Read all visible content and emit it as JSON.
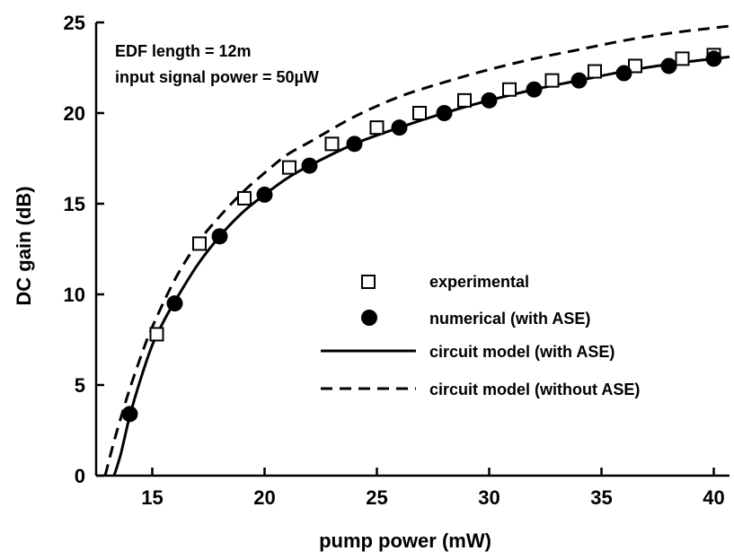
{
  "chart_data": {
    "type": "line",
    "title": "",
    "xlabel": "pump power (mW)",
    "ylabel": "DC gain (dB)",
    "xlim": [
      12.5,
      40.7
    ],
    "ylim": [
      0,
      25
    ],
    "xticks": [
      15,
      20,
      25,
      30,
      35,
      40
    ],
    "yticks": [
      0,
      5,
      10,
      15,
      20,
      25
    ],
    "grid": false,
    "legend_position": "center-right",
    "annotations": [
      "EDF length = 12m",
      "input signal power = 50µW"
    ],
    "series": [
      {
        "name": "experimental",
        "style": "open-square-markers",
        "color": "#000000",
        "x": [
          15.2,
          17.1,
          19.1,
          21.1,
          23.0,
          25.0,
          26.9,
          28.9,
          30.9,
          32.8,
          34.7,
          36.5,
          38.6,
          40.0
        ],
        "y": [
          7.8,
          12.8,
          15.3,
          17.0,
          18.3,
          19.2,
          20.0,
          20.7,
          21.3,
          21.8,
          22.3,
          22.6,
          23.0,
          23.2
        ]
      },
      {
        "name": "numerical (with ASE)",
        "style": "filled-circle-markers",
        "color": "#000000",
        "x": [
          14,
          16,
          18,
          20,
          22,
          24,
          26,
          28,
          30,
          32,
          34,
          36,
          38,
          40
        ],
        "y": [
          3.4,
          9.5,
          13.2,
          15.5,
          17.1,
          18.3,
          19.2,
          20.0,
          20.7,
          21.3,
          21.8,
          22.2,
          22.6,
          23.0
        ]
      },
      {
        "name": "circuit model (with ASE)",
        "style": "solid-line",
        "color": "#000000",
        "x": [
          13.3,
          13.6,
          14,
          14.5,
          15,
          15.5,
          16,
          17,
          18,
          19,
          20,
          21,
          22,
          24,
          26,
          28,
          30,
          32,
          34,
          36,
          38,
          40,
          40.7
        ],
        "y": [
          0.0,
          1.2,
          3.3,
          5.4,
          7.2,
          8.5,
          9.6,
          11.6,
          13.2,
          14.5,
          15.5,
          16.4,
          17.1,
          18.3,
          19.2,
          20.0,
          20.7,
          21.3,
          21.8,
          22.3,
          22.7,
          23.0,
          23.1
        ]
      },
      {
        "name": "circuit model (without ASE)",
        "style": "dashed-line",
        "color": "#000000",
        "x": [
          12.9,
          13.3,
          13.7,
          14,
          14.5,
          15,
          16,
          17,
          18,
          19,
          20,
          21,
          22,
          24,
          26,
          28,
          30,
          32,
          34,
          36,
          38,
          40,
          40.7
        ],
        "y": [
          0.0,
          1.9,
          3.6,
          4.8,
          6.6,
          8.2,
          10.8,
          12.8,
          14.3,
          15.6,
          16.7,
          17.7,
          18.4,
          19.8,
          20.9,
          21.7,
          22.4,
          23.0,
          23.5,
          24.0,
          24.4,
          24.7,
          24.8
        ]
      }
    ]
  }
}
